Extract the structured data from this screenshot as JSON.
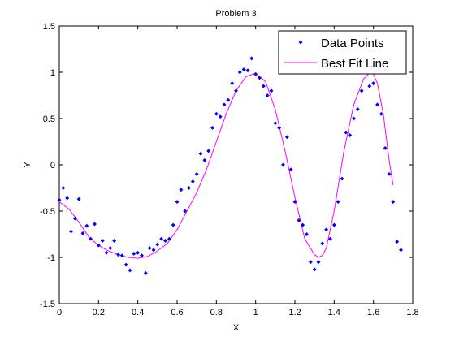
{
  "colors": {
    "points": "#0000ff",
    "fit": "#ff00ff",
    "axis": "#000000",
    "background": "#ffffff"
  },
  "chart_data": {
    "type": "scatter",
    "title": "Problem 3",
    "xlabel": "X",
    "ylabel": "Y",
    "xlim": [
      0,
      1.8
    ],
    "ylim": [
      -1.5,
      1.5
    ],
    "grid": false,
    "legend_position": "top-right",
    "xticks": [
      "0",
      "0.2",
      "0.4",
      "0.6",
      "0.8",
      "1",
      "1.2",
      "1.4",
      "1.6",
      "1.8"
    ],
    "yticks": [
      "-1.5",
      "-1",
      "-0.5",
      "0",
      "0.5",
      "1",
      "1.5"
    ],
    "series": [
      {
        "name": "Data Points",
        "kind": "markers",
        "x": [
          0.0,
          0.02,
          0.04,
          0.06,
          0.08,
          0.1,
          0.12,
          0.14,
          0.16,
          0.18,
          0.2,
          0.22,
          0.24,
          0.26,
          0.28,
          0.3,
          0.32,
          0.34,
          0.36,
          0.38,
          0.4,
          0.42,
          0.44,
          0.46,
          0.48,
          0.5,
          0.52,
          0.54,
          0.56,
          0.58,
          0.6,
          0.62,
          0.64,
          0.66,
          0.68,
          0.7,
          0.72,
          0.74,
          0.76,
          0.78,
          0.8,
          0.82,
          0.84,
          0.86,
          0.88,
          0.9,
          0.92,
          0.94,
          0.96,
          0.98,
          1.0,
          1.02,
          1.04,
          1.06,
          1.08,
          1.1,
          1.12,
          1.14,
          1.16,
          1.18,
          1.2,
          1.22,
          1.24,
          1.26,
          1.28,
          1.3,
          1.32,
          1.34,
          1.36,
          1.38,
          1.4,
          1.42,
          1.44,
          1.46,
          1.48,
          1.5,
          1.52,
          1.54,
          1.56,
          1.58,
          1.6,
          1.62,
          1.64,
          1.66,
          1.68,
          1.7,
          1.72,
          1.74
        ],
        "y": [
          -0.38,
          -0.25,
          -0.36,
          -0.72,
          -0.58,
          -0.37,
          -0.74,
          -0.66,
          -0.8,
          -0.64,
          -0.87,
          -0.82,
          -0.95,
          -0.9,
          -0.82,
          -0.97,
          -0.98,
          -1.08,
          -1.14,
          -0.96,
          -0.95,
          -0.98,
          -1.17,
          -0.9,
          -0.92,
          -0.86,
          -0.8,
          -0.82,
          -0.8,
          -0.65,
          -0.4,
          -0.27,
          -0.5,
          -0.25,
          -0.18,
          -0.1,
          0.12,
          0.05,
          0.15,
          0.4,
          0.55,
          0.52,
          0.65,
          0.7,
          0.88,
          0.8,
          1.0,
          1.03,
          1.02,
          1.15,
          0.98,
          0.94,
          0.85,
          0.75,
          0.8,
          0.45,
          0.4,
          0.0,
          0.3,
          -0.05,
          -0.4,
          -0.6,
          -0.65,
          -0.75,
          -1.05,
          -1.13,
          -1.05,
          -0.85,
          -0.7,
          -0.8,
          -0.65,
          -0.4,
          -0.15,
          0.35,
          0.32,
          0.5,
          0.6,
          0.8,
          1.0,
          0.85,
          0.88,
          0.65,
          0.55,
          0.18,
          -0.1,
          -0.4,
          -0.83,
          -0.92
        ]
      },
      {
        "name": "Best Fit Line",
        "kind": "line",
        "x": [
          0.0,
          0.05,
          0.1,
          0.15,
          0.2,
          0.25,
          0.3,
          0.35,
          0.4,
          0.45,
          0.5,
          0.55,
          0.6,
          0.65,
          0.7,
          0.75,
          0.8,
          0.85,
          0.9,
          0.95,
          1.0,
          1.05,
          1.1,
          1.15,
          1.2,
          1.25,
          1.3,
          1.32,
          1.34,
          1.36,
          1.4,
          1.45,
          1.5,
          1.55,
          1.58,
          1.6,
          1.62,
          1.65,
          1.68,
          1.7
        ],
        "y": [
          -0.4,
          -0.48,
          -0.62,
          -0.78,
          -0.87,
          -0.93,
          -0.97,
          -1.0,
          -1.01,
          -0.99,
          -0.93,
          -0.85,
          -0.7,
          -0.5,
          -0.3,
          -0.05,
          0.25,
          0.55,
          0.8,
          0.95,
          0.99,
          0.9,
          0.6,
          0.15,
          -0.35,
          -0.8,
          -0.97,
          -1.0,
          -0.98,
          -0.9,
          -0.5,
          0.15,
          0.65,
          0.93,
          0.99,
          0.98,
          0.88,
          0.55,
          0.05,
          -0.22
        ]
      }
    ]
  }
}
